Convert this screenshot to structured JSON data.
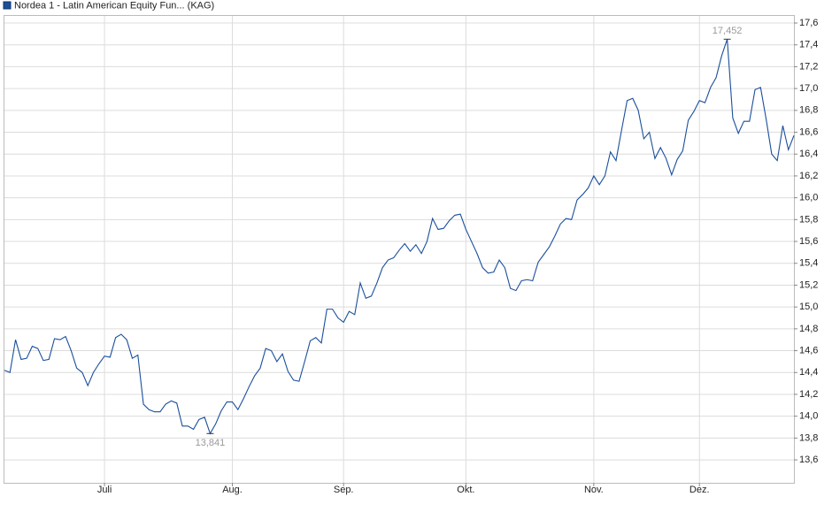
{
  "chart_data": {
    "type": "line",
    "categories": [
      null,
      null,
      null,
      null,
      null,
      null,
      null,
      null,
      null,
      null,
      null,
      null,
      null,
      null,
      null,
      null,
      null,
      null,
      "Juli",
      null,
      null,
      null,
      null,
      null,
      null,
      null,
      null,
      null,
      null,
      null,
      null,
      null,
      null,
      null,
      null,
      null,
      null,
      null,
      null,
      null,
      null,
      "Aug.",
      null,
      null,
      null,
      null,
      null,
      null,
      null,
      null,
      null,
      null,
      null,
      null,
      null,
      null,
      null,
      null,
      null,
      null,
      null,
      "Sep.",
      null,
      null,
      null,
      null,
      null,
      null,
      null,
      null,
      null,
      null,
      null,
      null,
      null,
      null,
      null,
      null,
      null,
      null,
      null,
      null,
      null,
      "Okt.",
      null,
      null,
      null,
      null,
      null,
      null,
      null,
      null,
      null,
      null,
      null,
      null,
      null,
      null,
      null,
      null,
      null,
      null,
      null,
      null,
      null,
      null,
      "Nov.",
      null,
      null,
      null,
      null,
      null,
      null,
      null,
      null,
      null,
      null,
      null,
      null,
      null,
      null,
      null,
      null,
      null,
      null,
      "Dez.",
      null,
      null,
      null,
      null,
      null,
      null,
      null,
      null,
      null,
      null,
      null,
      null,
      null,
      null,
      null,
      null,
      null
    ],
    "series": [
      {
        "name": "Nordea 1 - Latin American Equity Fun... (KAG)",
        "color": "#1a4f9c",
        "values": [
          14.42,
          14.4,
          14.7,
          14.52,
          14.53,
          14.64,
          14.62,
          14.51,
          14.52,
          14.71,
          14.7,
          14.73,
          14.6,
          14.44,
          14.4,
          14.28,
          14.4,
          14.48,
          14.55,
          14.54,
          14.72,
          14.75,
          14.7,
          14.53,
          14.56,
          14.11,
          14.06,
          14.04,
          14.04,
          14.11,
          14.14,
          14.12,
          13.91,
          13.91,
          13.88,
          13.97,
          13.99,
          13.841,
          13.93,
          14.05,
          14.13,
          14.13,
          14.06,
          14.16,
          14.27,
          14.37,
          14.44,
          14.62,
          14.6,
          14.5,
          14.57,
          14.41,
          14.33,
          14.32,
          14.5,
          14.69,
          14.72,
          14.67,
          14.98,
          14.98,
          14.9,
          14.86,
          14.96,
          14.93,
          15.22,
          15.08,
          15.1,
          15.22,
          15.36,
          15.43,
          15.45,
          15.52,
          15.58,
          15.51,
          15.57,
          15.49,
          15.6,
          15.81,
          15.71,
          15.72,
          15.79,
          15.84,
          15.85,
          15.71,
          15.6,
          15.49,
          15.36,
          15.31,
          15.32,
          15.43,
          15.36,
          15.17,
          15.15,
          15.24,
          15.25,
          15.24,
          15.41,
          15.48,
          15.55,
          15.65,
          15.76,
          15.81,
          15.8,
          15.98,
          16.03,
          16.09,
          16.2,
          16.12,
          16.2,
          16.42,
          16.34,
          16.62,
          16.89,
          16.91,
          16.8,
          16.54,
          16.6,
          16.36,
          16.46,
          16.36,
          16.21,
          16.35,
          16.43,
          16.71,
          16.79,
          16.89,
          16.87,
          17.01,
          17.1,
          17.3,
          17.452,
          16.73,
          16.59,
          16.7,
          16.7,
          16.99,
          17.01,
          16.72,
          16.4,
          16.34,
          16.66,
          16.44,
          16.57
        ]
      }
    ],
    "annotations": [
      {
        "label": "13,841",
        "value": 13.841
      },
      {
        "label": "17,452",
        "value": 17.452
      }
    ],
    "ylim": [
      13.39,
      17.665
    ],
    "yticks": [
      {
        "value": 13.6,
        "label": "13,6"
      },
      {
        "value": 13.8,
        "label": "13,8"
      },
      {
        "value": 14.0,
        "label": "14,0"
      },
      {
        "value": 14.2,
        "label": "14,2"
      },
      {
        "value": 14.4,
        "label": "14,4"
      },
      {
        "value": 14.6,
        "label": "14,6"
      },
      {
        "value": 14.8,
        "label": "14,8"
      },
      {
        "value": 15.0,
        "label": "15,0"
      },
      {
        "value": 15.2,
        "label": "15,2"
      },
      {
        "value": 15.4,
        "label": "15,4"
      },
      {
        "value": 15.6,
        "label": "15,6"
      },
      {
        "value": 15.8,
        "label": "15,8"
      },
      {
        "value": 16.0,
        "label": "16,0"
      },
      {
        "value": 16.2,
        "label": "16,2"
      },
      {
        "value": 16.4,
        "label": "16,4"
      },
      {
        "value": 16.6,
        "label": "16,6"
      },
      {
        "value": 16.8,
        "label": "16,8"
      },
      {
        "value": 17.0,
        "label": "17,0"
      },
      {
        "value": 17.2,
        "label": "17,2"
      },
      {
        "value": 17.4,
        "label": "17,4"
      },
      {
        "value": 17.6,
        "label": "17,6"
      }
    ],
    "grid": true
  }
}
